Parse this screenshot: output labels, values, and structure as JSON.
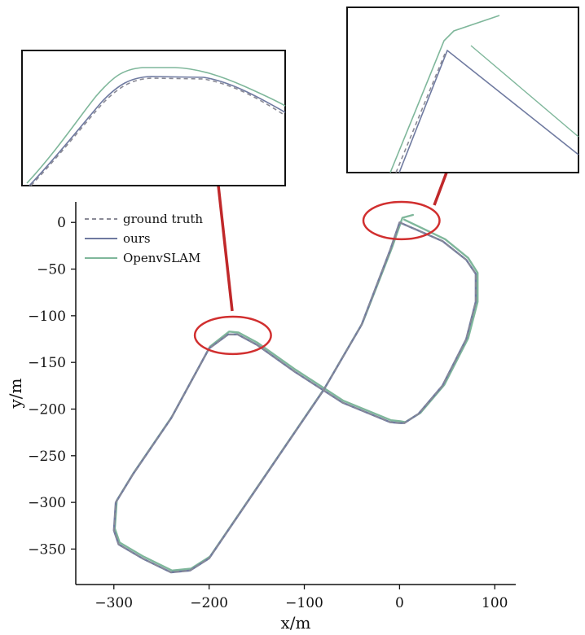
{
  "chart_data": {
    "type": "line",
    "title": "",
    "xlabel": "x/m",
    "ylabel": "y/m",
    "xlim": [
      -340,
      122
    ],
    "ylim": [
      -388,
      22
    ],
    "xticks": [
      -300,
      -200,
      -100,
      0,
      100
    ],
    "yticks": [
      0,
      -50,
      -100,
      -150,
      -200,
      -250,
      -300,
      -350
    ],
    "xtick_labels": [
      "−300",
      "−200",
      "−100",
      "0",
      "100"
    ],
    "ytick_labels": [
      "0",
      "−50",
      "−100",
      "−150",
      "−200",
      "−250",
      "−300",
      "−350"
    ],
    "legend_position": "top-left",
    "grid": false,
    "series": [
      {
        "name": "ground truth",
        "style": "dashed",
        "color": "#8a8a96",
        "x": [
          0,
          45,
          70,
          80,
          80,
          70,
          45,
          20,
          5,
          0,
          -10,
          -60,
          -110,
          -150,
          -170,
          -180,
          -200,
          -240,
          -280,
          -298,
          -300,
          -295,
          -270,
          -240,
          -220,
          -200,
          -160,
          -120,
          -80,
          -40,
          -10,
          0
        ],
        "y": [
          0,
          -20,
          -40,
          -55,
          -85,
          -125,
          -175,
          -205,
          -215,
          -215,
          -214,
          -193,
          -160,
          -131,
          -120,
          -120,
          -135,
          -210,
          -270,
          -300,
          -330,
          -345,
          -360,
          -375,
          -373,
          -360,
          -300,
          -240,
          -180,
          -110,
          -30,
          0
        ]
      },
      {
        "name": "ours",
        "style": "solid",
        "color": "#6f7aa0",
        "x": [
          0,
          45,
          70,
          80,
          80,
          70,
          45,
          20,
          5,
          0,
          -10,
          -60,
          -110,
          -150,
          -170,
          -180,
          -200,
          -240,
          -280,
          -298,
          -300,
          -295,
          -270,
          -240,
          -220,
          -200,
          -160,
          -120,
          -80,
          -40,
          -10,
          0
        ],
        "y": [
          0,
          -20,
          -40,
          -55,
          -85,
          -125,
          -175,
          -205,
          -215,
          -215,
          -214,
          -193,
          -160,
          -131,
          -120,
          -120,
          -135,
          -210,
          -270,
          -300,
          -330,
          -345,
          -360,
          -375,
          -373,
          -360,
          -300,
          -240,
          -180,
          -110,
          -30,
          0
        ]
      },
      {
        "name": "OpenvSLAM",
        "style": "solid",
        "color": "#7fb79b",
        "x": [
          5,
          48,
          72,
          82,
          82,
          72,
          47,
          22,
          6,
          1,
          -9,
          -59,
          -109,
          -149,
          -169,
          -179,
          -199,
          -239,
          -279,
          -297,
          -299,
          -294,
          -269,
          -239,
          -219,
          -199,
          -159,
          -119,
          -79,
          -39,
          -8,
          3,
          14
        ],
        "y": [
          3,
          -18,
          -38,
          -54,
          -85,
          -124,
          -174,
          -204,
          -214,
          -213,
          -212,
          -191,
          -158,
          -129,
          -118,
          -117,
          -133,
          -208,
          -268,
          -298,
          -328,
          -343,
          -358,
          -373,
          -371,
          -358,
          -298,
          -238,
          -178,
          -108,
          -27,
          5,
          8
        ]
      }
    ],
    "annotations": [
      {
        "type": "zoom-circle",
        "center": [
          -175,
          -121
        ],
        "radius_x": 40,
        "radius_y": 20,
        "color": "#d12f2f"
      },
      {
        "type": "zoom-circle",
        "center": [
          2,
          2
        ],
        "radius_x": 40,
        "radius_y": 20,
        "color": "#d12f2f"
      }
    ],
    "insets": [
      {
        "name": "zoom-peak",
        "source": [
          -175,
          -121
        ]
      },
      {
        "name": "zoom-origin",
        "source": [
          2,
          2
        ]
      }
    ]
  }
}
